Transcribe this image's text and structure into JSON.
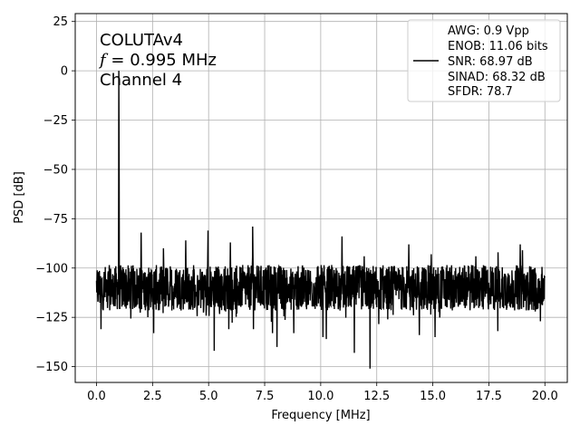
{
  "chart_data": {
    "type": "line",
    "xlabel": "Frequency [MHz]",
    "ylabel": "PSD [dB]",
    "xlim": [
      -0.95,
      21.0
    ],
    "ylim": [
      -158,
      29
    ],
    "xticks": [
      0.0,
      2.5,
      5.0,
      7.5,
      10.0,
      12.5,
      15.0,
      17.5,
      20.0
    ],
    "xtick_labels": [
      "0.0",
      "2.5",
      "5.0",
      "7.5",
      "10.0",
      "12.5",
      "15.0",
      "17.5",
      "20.0"
    ],
    "yticks": [
      25,
      0,
      -25,
      -50,
      -75,
      -100,
      -125,
      -150
    ],
    "ytick_labels": [
      "25",
      "0",
      "−25",
      "−50",
      "−75",
      "−100",
      "−125",
      "−150"
    ],
    "grid": true,
    "annotation_lines": [
      "COLUTAv4",
      "f = 0.995 MHz",
      "Channel 4"
    ],
    "legend_position": "top-right",
    "legend_lines": [
      "AWG: 0.9 Vpp",
      "ENOB: 11.06 bits",
      "SNR: 68.97 dB",
      "SINAD: 68.32 dB",
      "SFDR: 78.7"
    ],
    "series_color": "#000000",
    "noise_floor": {
      "x_range": [
        0.0,
        20.0
      ],
      "center": -110,
      "upper": -101,
      "lower": -123
    },
    "peaks": [
      {
        "x": 0.995,
        "y": 0
      },
      {
        "x": 1.99,
        "y": -82
      },
      {
        "x": 2.985,
        "y": -90
      },
      {
        "x": 3.98,
        "y": -86
      },
      {
        "x": 4.975,
        "y": -81
      },
      {
        "x": 5.97,
        "y": -87
      },
      {
        "x": 6.965,
        "y": -79
      },
      {
        "x": 10.95,
        "y": -84
      },
      {
        "x": 11.94,
        "y": -94
      },
      {
        "x": 13.93,
        "y": -88
      },
      {
        "x": 14.93,
        "y": -93
      },
      {
        "x": 16.92,
        "y": -94
      },
      {
        "x": 17.91,
        "y": -92
      },
      {
        "x": 18.9,
        "y": -88
      },
      {
        "x": 19.0,
        "y": -91
      }
    ],
    "dips": [
      {
        "x": 0.2,
        "y": -131
      },
      {
        "x": 2.55,
        "y": -133
      },
      {
        "x": 5.25,
        "y": -142
      },
      {
        "x": 5.9,
        "y": -131
      },
      {
        "x": 7.0,
        "y": -131
      },
      {
        "x": 7.85,
        "y": -133
      },
      {
        "x": 8.05,
        "y": -140
      },
      {
        "x": 8.8,
        "y": -133
      },
      {
        "x": 10.1,
        "y": -135
      },
      {
        "x": 10.25,
        "y": -136
      },
      {
        "x": 11.5,
        "y": -143
      },
      {
        "x": 12.2,
        "y": -151
      },
      {
        "x": 14.4,
        "y": -134
      },
      {
        "x": 15.1,
        "y": -135
      },
      {
        "x": 17.9,
        "y": -132
      },
      {
        "x": 19.8,
        "y": -127
      }
    ]
  }
}
